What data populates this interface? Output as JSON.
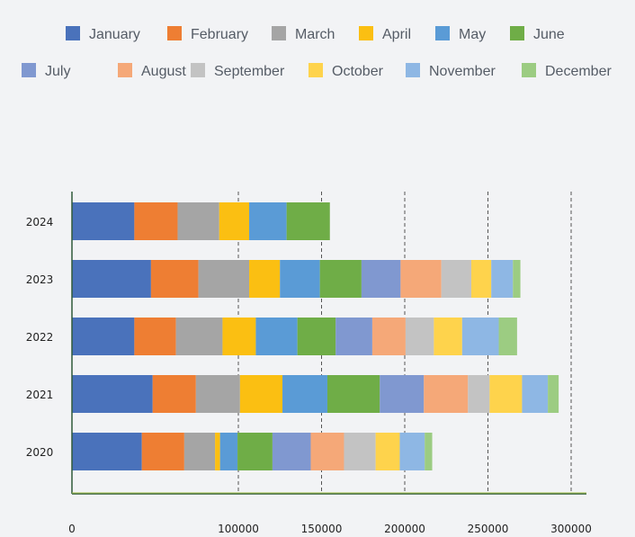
{
  "chart_data": {
    "type": "bar",
    "orientation": "horizontal",
    "stacked": true,
    "title": "",
    "xlabel": "",
    "ylabel": "",
    "categories": [
      "2024",
      "2023",
      "2022",
      "2021",
      "2020"
    ],
    "xlim": [
      0,
      310000
    ],
    "x_ticks": [
      "0",
      "100000",
      "150000",
      "200000",
      "250000",
      "300000"
    ],
    "x_tick_values": [
      0,
      100000,
      150000,
      200000,
      250000,
      300000
    ],
    "grid": "vertical dashed",
    "legend_position": "top",
    "series": [
      {
        "name": "January",
        "color": "#4a72bb",
        "values": [
          37500,
          47500,
          37500,
          48500,
          42000
        ]
      },
      {
        "name": "February",
        "color": "#ee7e33",
        "values": [
          26000,
          28500,
          25000,
          26000,
          25500
        ]
      },
      {
        "name": "March",
        "color": "#a5a5a5",
        "values": [
          25000,
          30500,
          28000,
          26500,
          18500
        ]
      },
      {
        "name": "April",
        "color": "#fbbf12",
        "values": [
          18000,
          18500,
          20000,
          25500,
          3000
        ]
      },
      {
        "name": "May",
        "color": "#5a9bd6",
        "values": [
          22500,
          24000,
          25000,
          27000,
          10500
        ]
      },
      {
        "name": "June",
        "color": "#6fad47",
        "values": [
          26000,
          25000,
          23000,
          31500,
          21000
        ]
      },
      {
        "name": "July",
        "color": "#8098d0",
        "values": [
          0,
          23500,
          22000,
          26500,
          23000
        ]
      },
      {
        "name": "August",
        "color": "#f5a878",
        "values": [
          0,
          24500,
          20000,
          26500,
          20000
        ]
      },
      {
        "name": "September",
        "color": "#c3c3c3",
        "values": [
          0,
          18000,
          17000,
          13000,
          19000
        ]
      },
      {
        "name": "October",
        "color": "#fed34c",
        "values": [
          0,
          12000,
          17000,
          19500,
          14500
        ]
      },
      {
        "name": "November",
        "color": "#8eb7e4",
        "values": [
          0,
          13000,
          22000,
          15500,
          15000
        ]
      },
      {
        "name": "December",
        "color": "#9ccc82",
        "values": [
          0,
          4500,
          11000,
          6500,
          4500
        ]
      }
    ]
  }
}
